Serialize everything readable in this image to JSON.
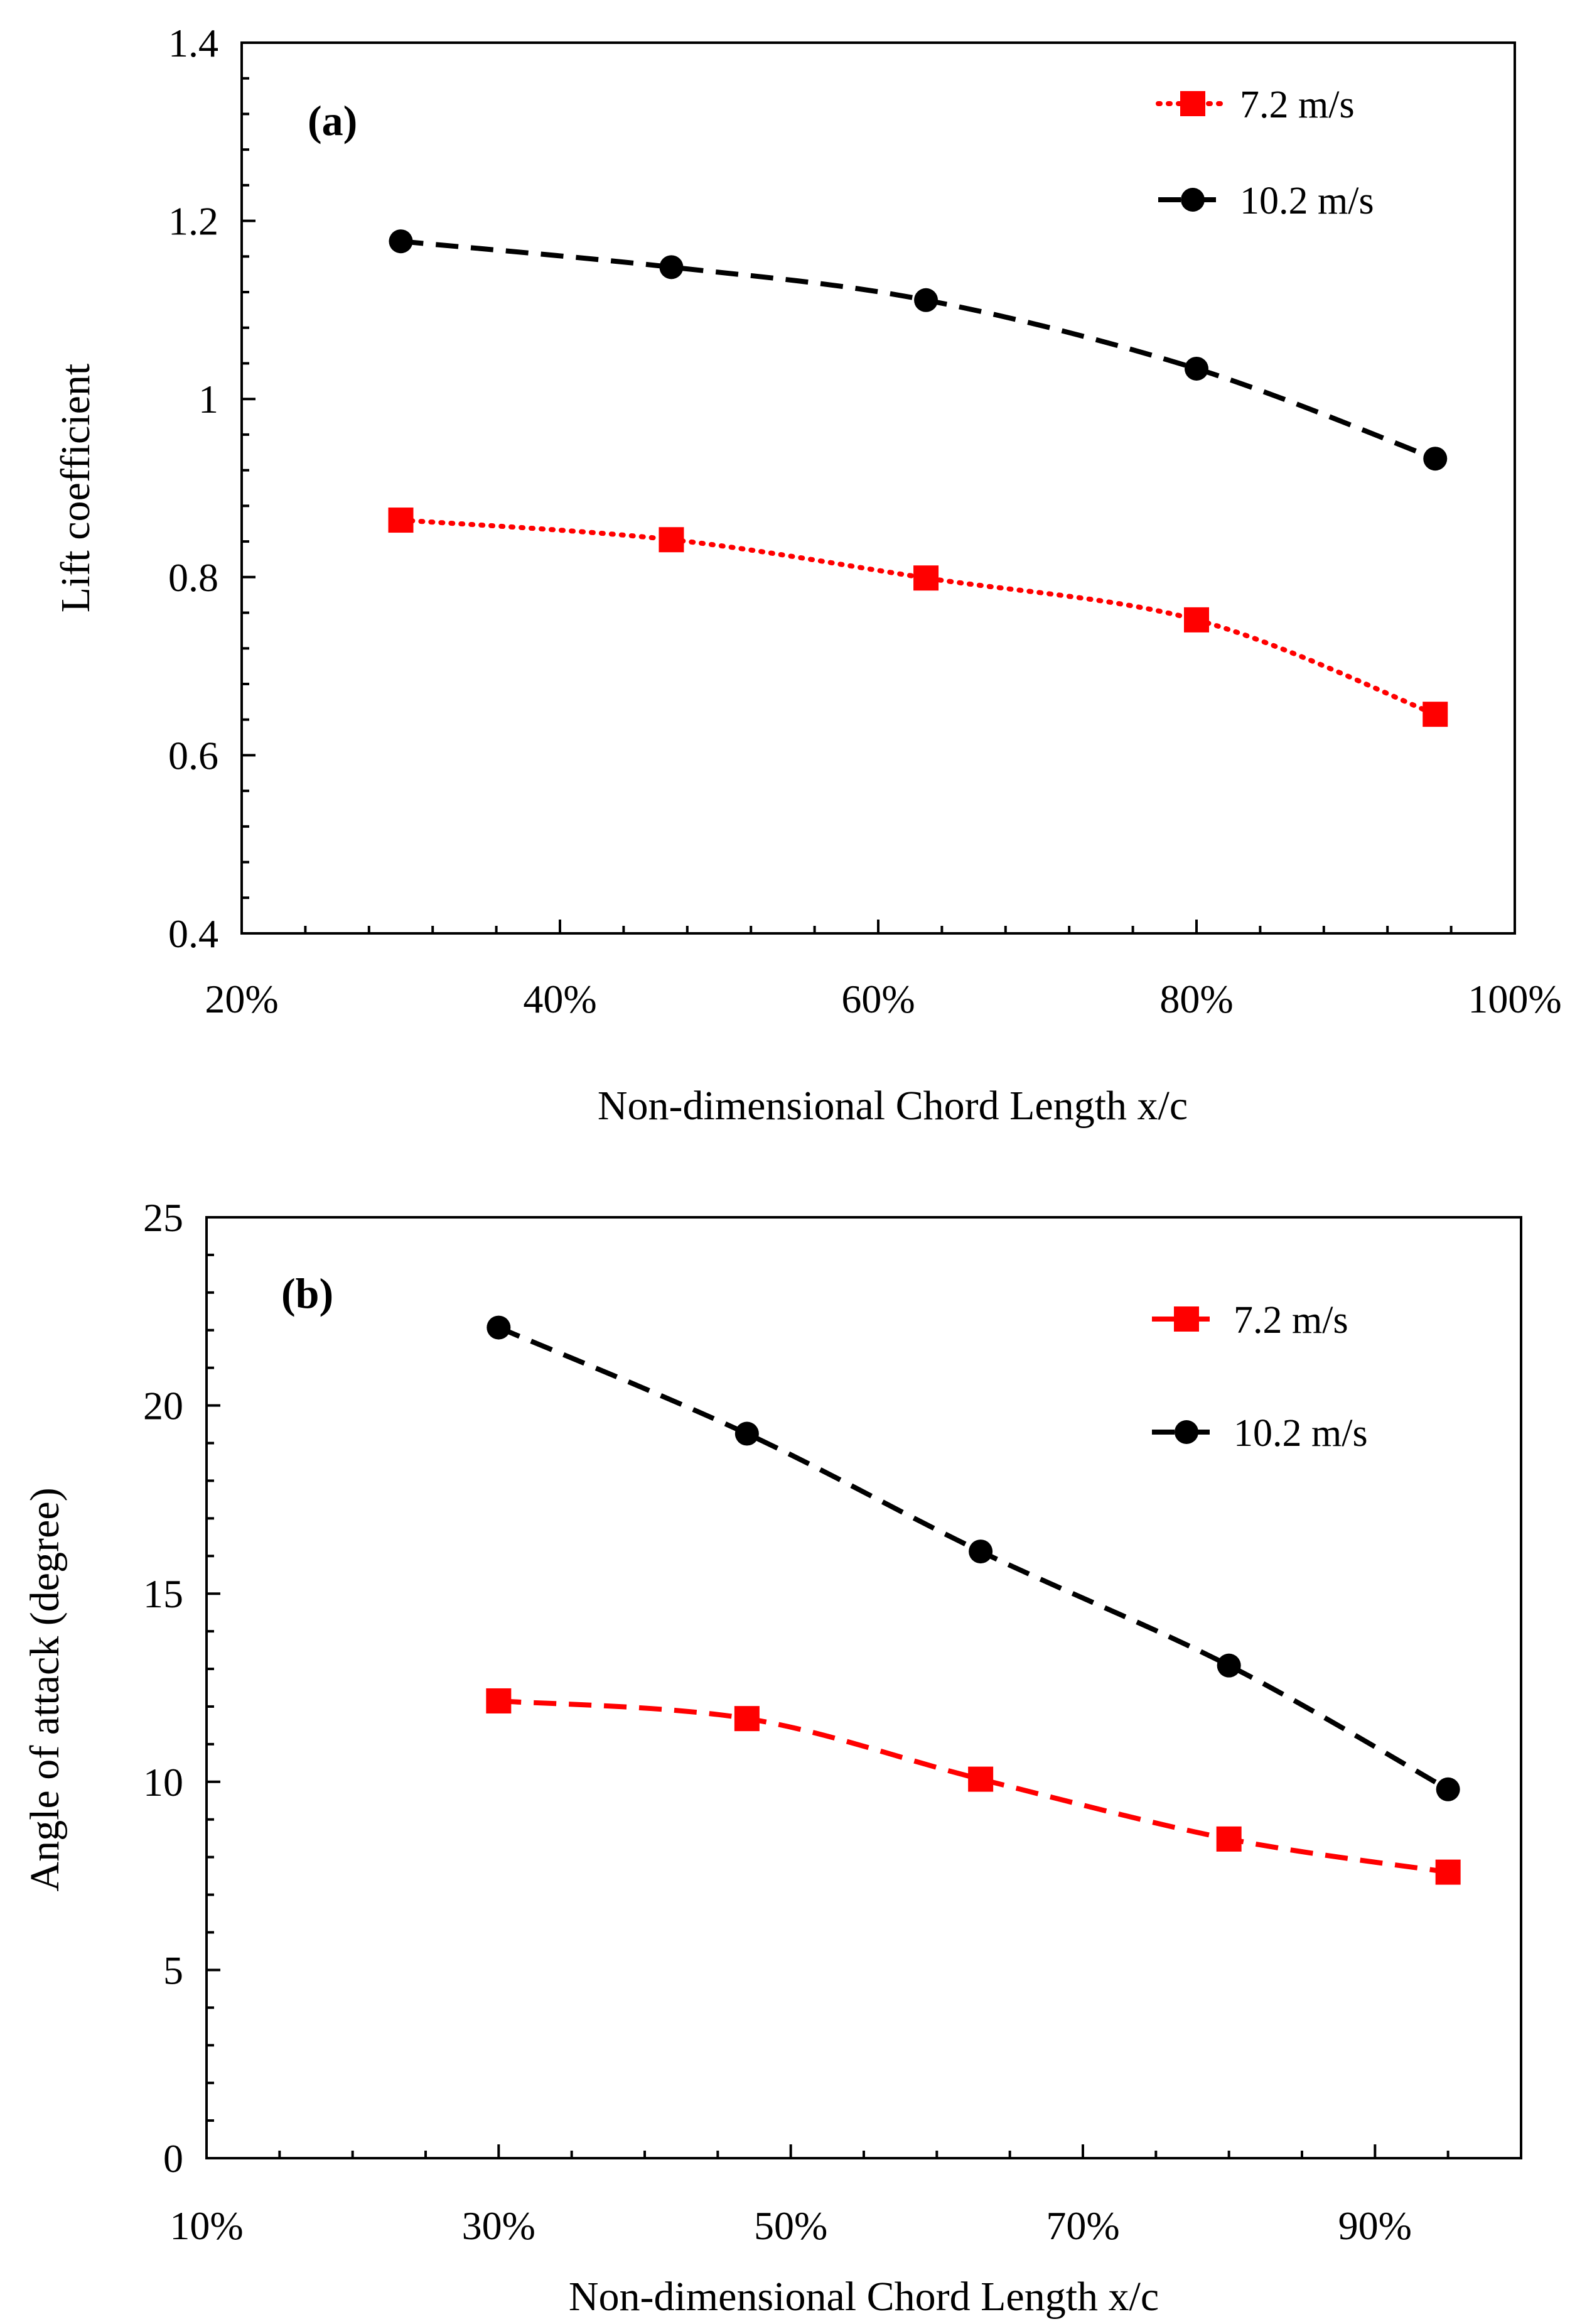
{
  "chart_data": [
    {
      "type": "line",
      "panel_label": "(a)",
      "xlabel": "Non-dimensional Chord Length x/c",
      "ylabel": "Lift coefficient",
      "xlim": [
        20,
        100
      ],
      "ylim": [
        0.4,
        1.4
      ],
      "x_ticks": [
        20,
        40,
        60,
        80,
        100
      ],
      "x_tick_labels": [
        "20%",
        "40%",
        "60%",
        "80%",
        "100%"
      ],
      "y_ticks": [
        0.4,
        0.6,
        0.8,
        1.0,
        1.2,
        1.4
      ],
      "y_tick_labels": [
        "0.4",
        "0.6",
        "0.8",
        "1",
        "1.2",
        "1.4"
      ],
      "grid": false,
      "legend_position": "top-right",
      "series": [
        {
          "name": "7.2 m/s",
          "color": "#ff0000",
          "marker": "square",
          "line_style": "dotted",
          "x": [
            30,
            47,
            63,
            80,
            95
          ],
          "values": [
            0.864,
            0.842,
            0.799,
            0.752,
            0.646
          ]
        },
        {
          "name": "10.2 m/s",
          "color": "#000000",
          "marker": "circle",
          "line_style": "dashed",
          "x": [
            30,
            47,
            63,
            80,
            95
          ],
          "values": [
            1.177,
            1.148,
            1.111,
            1.034,
            0.933
          ]
        }
      ]
    },
    {
      "type": "line",
      "panel_label": "(b)",
      "xlabel": "Non-dimensional Chord Length x/c",
      "ylabel": "Angle of attack (degree)",
      "xlim": [
        10,
        100
      ],
      "ylim": [
        0,
        25
      ],
      "x_ticks": [
        10,
        30,
        50,
        70,
        90
      ],
      "x_tick_labels": [
        "10%",
        "30%",
        "50%",
        "70%",
        "90%"
      ],
      "y_ticks": [
        0,
        5,
        10,
        15,
        20,
        25
      ],
      "y_tick_labels": [
        "0",
        "5",
        "10",
        "15",
        "20",
        "25"
      ],
      "grid": false,
      "legend_position": "top-right",
      "series": [
        {
          "name": "7.2 m/s",
          "color": "#ff0000",
          "marker": "square",
          "line_style": "dashed",
          "x": [
            30,
            47,
            63,
            80,
            95
          ],
          "values": [
            12.15,
            11.68,
            10.07,
            8.48,
            7.6
          ]
        },
        {
          "name": "10.2 m/s",
          "color": "#000000",
          "marker": "circle",
          "line_style": "dashed",
          "x": [
            30,
            47,
            63,
            80,
            95
          ],
          "values": [
            22.07,
            19.25,
            16.12,
            13.09,
            9.8
          ]
        }
      ]
    }
  ]
}
